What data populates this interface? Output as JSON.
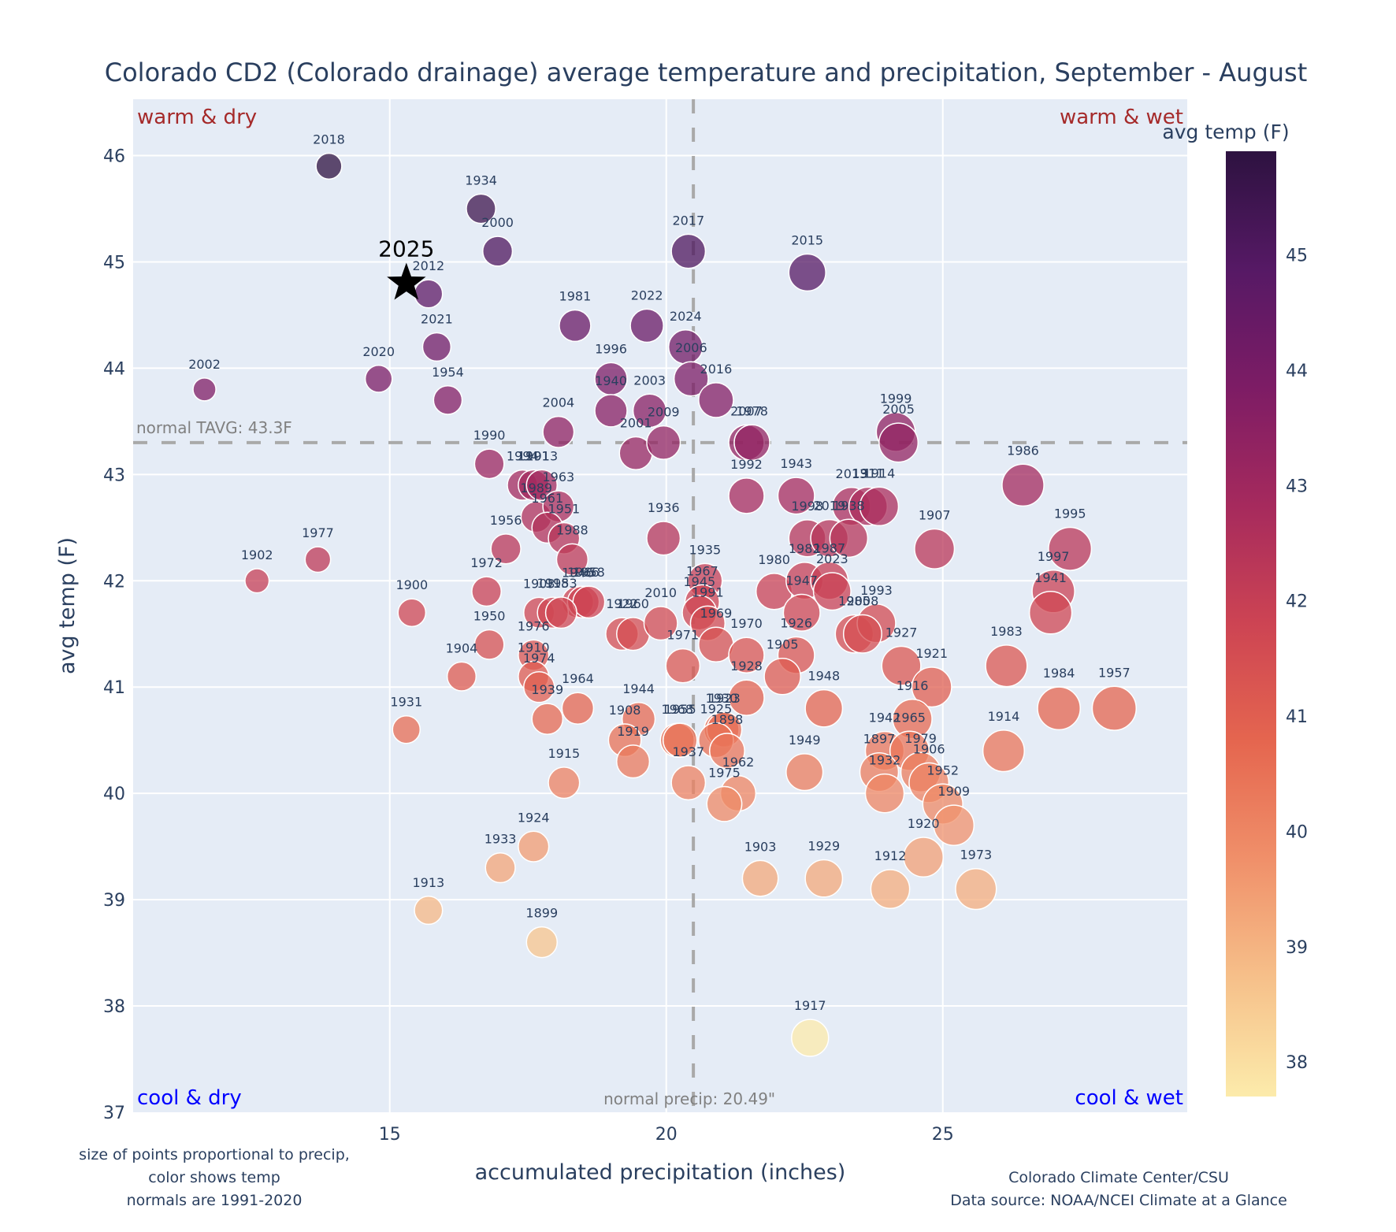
{
  "chart_data": {
    "type": "scatter",
    "title": "Colorado CD2 (Colorado drainage) average temperature and precipitation, September - August",
    "xlabel": "accumulated precipitation (inches)",
    "ylabel": "avg temp (F)",
    "xlim": [
      10.36,
      29.42
    ],
    "ylim": [
      37,
      46.53
    ],
    "xticks": [
      15,
      20,
      25
    ],
    "yticks": [
      37,
      38,
      39,
      40,
      41,
      42,
      43,
      44,
      45,
      46
    ],
    "grid": true,
    "size_encodes": "precipitation",
    "color_encodes": "avg temp",
    "colorbar": {
      "title": "avg temp (F)",
      "range": [
        37.7,
        45.9
      ],
      "ticks": [
        38,
        39,
        40,
        41,
        42,
        43,
        44,
        45
      ],
      "colorscale": [
        "#fcebab",
        "#f6c08a",
        "#f0906a",
        "#e5664f",
        "#cd4453",
        "#a62a5d",
        "#7d1c65",
        "#561965",
        "#2d1240"
      ]
    },
    "reference_lines": {
      "normal_temp": {
        "value": 43.3,
        "label": "normal TAVG: 43.3F"
      },
      "normal_precip": {
        "value": 20.49,
        "label": "normal precip: 20.49\""
      }
    },
    "quadrant_labels": {
      "top_left": "warm & dry",
      "top_right": "warm & wet",
      "bottom_left": "cool & dry",
      "bottom_right": "cool & wet"
    },
    "highlight": {
      "label": "2025",
      "x": 15.3,
      "y": 44.8,
      "marker": "star"
    },
    "points": [
      {
        "year": "2018",
        "x": 13.9,
        "y": 45.9
      },
      {
        "year": "1934",
        "x": 16.65,
        "y": 45.5
      },
      {
        "year": "2000",
        "x": 16.95,
        "y": 45.1
      },
      {
        "year": "2017",
        "x": 20.4,
        "y": 45.1
      },
      {
        "year": "2015",
        "x": 22.55,
        "y": 44.9
      },
      {
        "year": "2012",
        "x": 15.7,
        "y": 44.7
      },
      {
        "year": "1981",
        "x": 18.35,
        "y": 44.4
      },
      {
        "year": "2022",
        "x": 19.65,
        "y": 44.4
      },
      {
        "year": "2021",
        "x": 15.85,
        "y": 44.2
      },
      {
        "year": "2024",
        "x": 20.35,
        "y": 44.2
      },
      {
        "year": "2002",
        "x": 11.65,
        "y": 43.8
      },
      {
        "year": "2020",
        "x": 14.8,
        "y": 43.9
      },
      {
        "year": "1954",
        "x": 16.05,
        "y": 43.7
      },
      {
        "year": "1996",
        "x": 19.0,
        "y": 43.9
      },
      {
        "year": "2006",
        "x": 20.45,
        "y": 43.9
      },
      {
        "year": "1940",
        "x": 19.0,
        "y": 43.6
      },
      {
        "year": "2003",
        "x": 19.7,
        "y": 43.6
      },
      {
        "year": "2016",
        "x": 20.9,
        "y": 43.7
      },
      {
        "year": "2004",
        "x": 18.05,
        "y": 43.4
      },
      {
        "year": "2001",
        "x": 19.45,
        "y": 43.2
      },
      {
        "year": "2009",
        "x": 19.95,
        "y": 43.3
      },
      {
        "year": "2007",
        "x": 21.45,
        "y": 43.3
      },
      {
        "year": "1978",
        "x": 21.55,
        "y": 43.3
      },
      {
        "year": "1999",
        "x": 24.15,
        "y": 43.4
      },
      {
        "year": "2005",
        "x": 24.2,
        "y": 43.3
      },
      {
        "year": "1986",
        "x": 26.45,
        "y": 42.9
      },
      {
        "year": "1990",
        "x": 16.8,
        "y": 43.1
      },
      {
        "year": "1994",
        "x": 17.4,
        "y": 42.9
      },
      {
        "year": "1901",
        "x": 17.6,
        "y": 42.9
      },
      {
        "year": "1913",
        "x": 17.75,
        "y": 42.9
      },
      {
        "year": "1989",
        "x": 17.65,
        "y": 42.6
      },
      {
        "year": "1963",
        "x": 18.05,
        "y": 42.7
      },
      {
        "year": "1961",
        "x": 17.85,
        "y": 42.5
      },
      {
        "year": "1951",
        "x": 18.15,
        "y": 42.4
      },
      {
        "year": "1956",
        "x": 17.1,
        "y": 42.3
      },
      {
        "year": "1988",
        "x": 18.3,
        "y": 42.2
      },
      {
        "year": "1936",
        "x": 19.95,
        "y": 42.4
      },
      {
        "year": "1992",
        "x": 21.45,
        "y": 42.8
      },
      {
        "year": "1943",
        "x": 22.35,
        "y": 42.8
      },
      {
        "year": "2013",
        "x": 23.35,
        "y": 42.7
      },
      {
        "year": "1911",
        "x": 23.65,
        "y": 42.7
      },
      {
        "year": "1914",
        "x": 23.85,
        "y": 42.7
      },
      {
        "year": "1998",
        "x": 22.55,
        "y": 42.4
      },
      {
        "year": "2019",
        "x": 22.95,
        "y": 42.4
      },
      {
        "year": "1938",
        "x": 23.3,
        "y": 42.4
      },
      {
        "year": "1907",
        "x": 24.85,
        "y": 42.3
      },
      {
        "year": "1995",
        "x": 27.3,
        "y": 42.3
      },
      {
        "year": "1902",
        "x": 12.6,
        "y": 42.0
      },
      {
        "year": "1977",
        "x": 13.7,
        "y": 42.2
      },
      {
        "year": "1972",
        "x": 16.75,
        "y": 41.9
      },
      {
        "year": "1946",
        "x": 18.4,
        "y": 41.8
      },
      {
        "year": "1966",
        "x": 18.5,
        "y": 41.8
      },
      {
        "year": "1958",
        "x": 18.6,
        "y": 41.8
      },
      {
        "year": "1935",
        "x": 20.7,
        "y": 42.0
      },
      {
        "year": "1967",
        "x": 20.65,
        "y": 41.8
      },
      {
        "year": "1945",
        "x": 20.6,
        "y": 41.7
      },
      {
        "year": "1980",
        "x": 21.95,
        "y": 41.9
      },
      {
        "year": "1982",
        "x": 22.5,
        "y": 42.0
      },
      {
        "year": "1987",
        "x": 22.95,
        "y": 42.0
      },
      {
        "year": "2023",
        "x": 23.0,
        "y": 41.9
      },
      {
        "year": "1947",
        "x": 22.45,
        "y": 41.7
      },
      {
        "year": "1985",
        "x": 23.4,
        "y": 41.5
      },
      {
        "year": "1993",
        "x": 23.8,
        "y": 41.6
      },
      {
        "year": "2008",
        "x": 23.55,
        "y": 41.5
      },
      {
        "year": "1997",
        "x": 27.0,
        "y": 41.9
      },
      {
        "year": "1941",
        "x": 26.95,
        "y": 41.7
      },
      {
        "year": "1900",
        "x": 15.4,
        "y": 41.7
      },
      {
        "year": "1903",
        "x": 17.7,
        "y": 41.7
      },
      {
        "year": "1918",
        "x": 17.95,
        "y": 41.7
      },
      {
        "year": "1953",
        "x": 18.1,
        "y": 41.7
      },
      {
        "year": "1922",
        "x": 19.2,
        "y": 41.5
      },
      {
        "year": "1960",
        "x": 19.4,
        "y": 41.5
      },
      {
        "year": "2010",
        "x": 19.9,
        "y": 41.6
      },
      {
        "year": "1991",
        "x": 20.75,
        "y": 41.6
      },
      {
        "year": "1969",
        "x": 20.9,
        "y": 41.4
      },
      {
        "year": "1970",
        "x": 21.45,
        "y": 41.3
      },
      {
        "year": "1926",
        "x": 22.35,
        "y": 41.3
      },
      {
        "year": "1927",
        "x": 24.25,
        "y": 41.2
      },
      {
        "year": "1983",
        "x": 26.15,
        "y": 41.2
      },
      {
        "year": "1950",
        "x": 16.8,
        "y": 41.4
      },
      {
        "year": "1976",
        "x": 17.6,
        "y": 41.3
      },
      {
        "year": "1904",
        "x": 16.3,
        "y": 41.1
      },
      {
        "year": "1910",
        "x": 17.6,
        "y": 41.1
      },
      {
        "year": "1974",
        "x": 17.7,
        "y": 41.0
      },
      {
        "year": "1971",
        "x": 20.3,
        "y": 41.2
      },
      {
        "year": "1905",
        "x": 22.1,
        "y": 41.1
      },
      {
        "year": "1928",
        "x": 21.45,
        "y": 40.9
      },
      {
        "year": "1948",
        "x": 22.85,
        "y": 40.8
      },
      {
        "year": "1921",
        "x": 24.8,
        "y": 41.0
      },
      {
        "year": "1916",
        "x": 24.45,
        "y": 40.7
      },
      {
        "year": "1984",
        "x": 27.1,
        "y": 40.8
      },
      {
        "year": "1957",
        "x": 28.1,
        "y": 40.8
      },
      {
        "year": "1964",
        "x": 18.4,
        "y": 40.8
      },
      {
        "year": "1939",
        "x": 17.85,
        "y": 40.7
      },
      {
        "year": "1931",
        "x": 15.3,
        "y": 40.6
      },
      {
        "year": "1944",
        "x": 19.5,
        "y": 40.7
      },
      {
        "year": "1908",
        "x": 19.25,
        "y": 40.5
      },
      {
        "year": "1968",
        "x": 20.2,
        "y": 40.5
      },
      {
        "year": "1955",
        "x": 20.25,
        "y": 40.5
      },
      {
        "year": "1930",
        "x": 21.0,
        "y": 40.6
      },
      {
        "year": "1923",
        "x": 21.05,
        "y": 40.6
      },
      {
        "year": "1925",
        "x": 20.9,
        "y": 40.5
      },
      {
        "year": "1898",
        "x": 21.1,
        "y": 40.4
      },
      {
        "year": "1942",
        "x": 23.95,
        "y": 40.4
      },
      {
        "year": "1965",
        "x": 24.4,
        "y": 40.4
      },
      {
        "year": "1914b",
        "x": 26.1,
        "y": 40.4
      },
      {
        "year": "1919",
        "x": 19.4,
        "y": 40.3
      },
      {
        "year": "1937",
        "x": 20.4,
        "y": 40.1
      },
      {
        "year": "1962",
        "x": 21.3,
        "y": 40.0
      },
      {
        "year": "1975",
        "x": 21.05,
        "y": 39.9
      },
      {
        "year": "1949",
        "x": 22.5,
        "y": 40.2
      },
      {
        "year": "1897",
        "x": 23.85,
        "y": 40.2
      },
      {
        "year": "1932",
        "x": 23.95,
        "y": 40.0
      },
      {
        "year": "1979",
        "x": 24.6,
        "y": 40.2
      },
      {
        "year": "1906",
        "x": 24.75,
        "y": 40.1
      },
      {
        "year": "1952",
        "x": 25.0,
        "y": 39.9
      },
      {
        "year": "1909",
        "x": 25.2,
        "y": 39.7
      },
      {
        "year": "1915",
        "x": 18.15,
        "y": 40.1
      },
      {
        "year": "1924",
        "x": 17.6,
        "y": 39.5
      },
      {
        "year": "1933",
        "x": 17.0,
        "y": 39.3
      },
      {
        "year": "1903b",
        "x": 21.7,
        "y": 39.2
      },
      {
        "year": "1929",
        "x": 22.85,
        "y": 39.2
      },
      {
        "year": "1912",
        "x": 24.05,
        "y": 39.1
      },
      {
        "year": "1920",
        "x": 24.65,
        "y": 39.4
      },
      {
        "year": "1973",
        "x": 25.6,
        "y": 39.1
      },
      {
        "year": "1913b",
        "x": 15.7,
        "y": 38.9
      },
      {
        "year": "1899",
        "x": 17.75,
        "y": 38.6
      },
      {
        "year": "1917",
        "x": 22.6,
        "y": 37.7
      }
    ]
  },
  "notes": {
    "left": [
      "size of points proportional to precip,",
      "color shows temp",
      "normals are 1991-2020"
    ],
    "right": [
      "Colorado Climate Center/CSU",
      "Data source: NOAA/NCEI Climate at a Glance"
    ]
  }
}
